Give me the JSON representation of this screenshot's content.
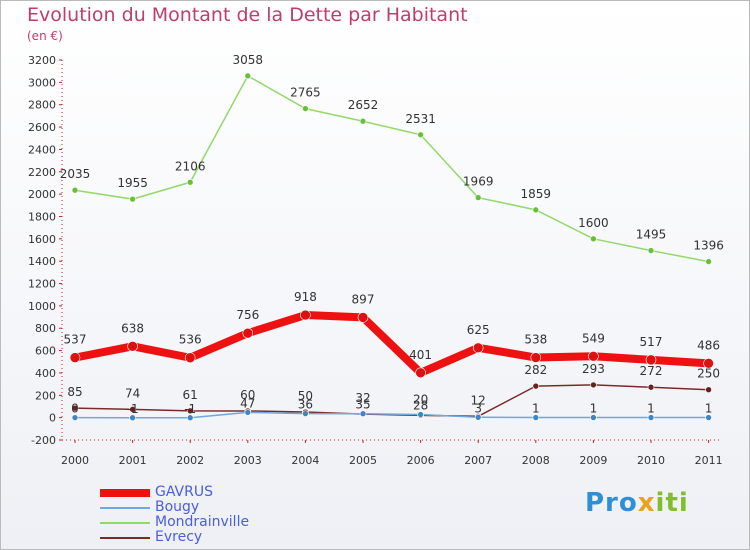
{
  "title": "Evolution du Montant de la Dette par Habitant",
  "subtitle": "(en €)",
  "logo": {
    "parts": [
      "Pro",
      "x",
      "iti"
    ],
    "colors": [
      "#2f8fd6",
      "#e8a21c",
      "#7fbf2a"
    ]
  },
  "chart_data": {
    "type": "line",
    "title": "Evolution du Montant de la Dette par Habitant",
    "ylabel": "(en €)",
    "categories": [
      "2000",
      "2001",
      "2002",
      "2003",
      "2004",
      "2005",
      "2006",
      "2007",
      "2008",
      "2009",
      "2010",
      "2011"
    ],
    "ylim": [
      -200,
      3200
    ],
    "yticks": [
      -200,
      0,
      200,
      400,
      600,
      800,
      1000,
      1200,
      1400,
      1600,
      1800,
      2000,
      2200,
      2400,
      2600,
      2800,
      3000,
      3200
    ],
    "grid": false,
    "legend_position": "bottom-left",
    "series": [
      {
        "name": "GAVRUS",
        "color": "#ee1111",
        "width": 8,
        "marker": "#dd1111",
        "markerR": 5,
        "values": [
          537,
          638,
          536,
          756,
          918,
          897,
          401,
          625,
          538,
          549,
          517,
          486
        ]
      },
      {
        "name": "Bougy",
        "color": "#6fa8dc",
        "width": 1.5,
        "marker": "#3d85c6",
        "markerR": 3,
        "values": [
          0,
          -1,
          -1,
          47,
          36,
          35,
          28,
          3,
          1,
          1,
          1,
          1
        ]
      },
      {
        "name": "Mondrainville",
        "color": "#93d86b",
        "width": 1.5,
        "marker": "#6abf3a",
        "markerR": 3,
        "values": [
          2035,
          1955,
          2106,
          3058,
          2765,
          2652,
          2531,
          1969,
          1859,
          1600,
          1495,
          1396
        ]
      },
      {
        "name": "Evrecy",
        "color": "#7b2a2a",
        "width": 1.5,
        "marker": "#6b1f1f",
        "markerR": 3,
        "values": [
          85,
          74,
          61,
          60,
          50,
          32,
          20,
          12,
          282,
          293,
          272,
          250
        ]
      }
    ],
    "data_labels": [
      {
        "series": "GAVRUS",
        "labels": [
          "537",
          "638",
          "536",
          "756",
          "918",
          "897",
          "401",
          "625",
          "538",
          "549",
          "517",
          "486"
        ]
      },
      {
        "series": "Bougy",
        "labels": [
          "0",
          "-1",
          "-1",
          "47",
          "36",
          "35",
          "28",
          "3",
          "1",
          "1",
          "1",
          "1"
        ]
      },
      {
        "series": "Mondrainville",
        "labels": [
          "2035",
          "1955",
          "2106",
          "3058",
          "2765",
          "2652",
          "2531",
          "1969",
          "1859",
          "1600",
          "1495",
          "1396"
        ]
      },
      {
        "series": "Evrecy",
        "labels": [
          "85",
          "74",
          "61",
          "60",
          "50",
          "32",
          "20",
          "12",
          "282",
          "293",
          "272",
          "250"
        ]
      }
    ]
  }
}
